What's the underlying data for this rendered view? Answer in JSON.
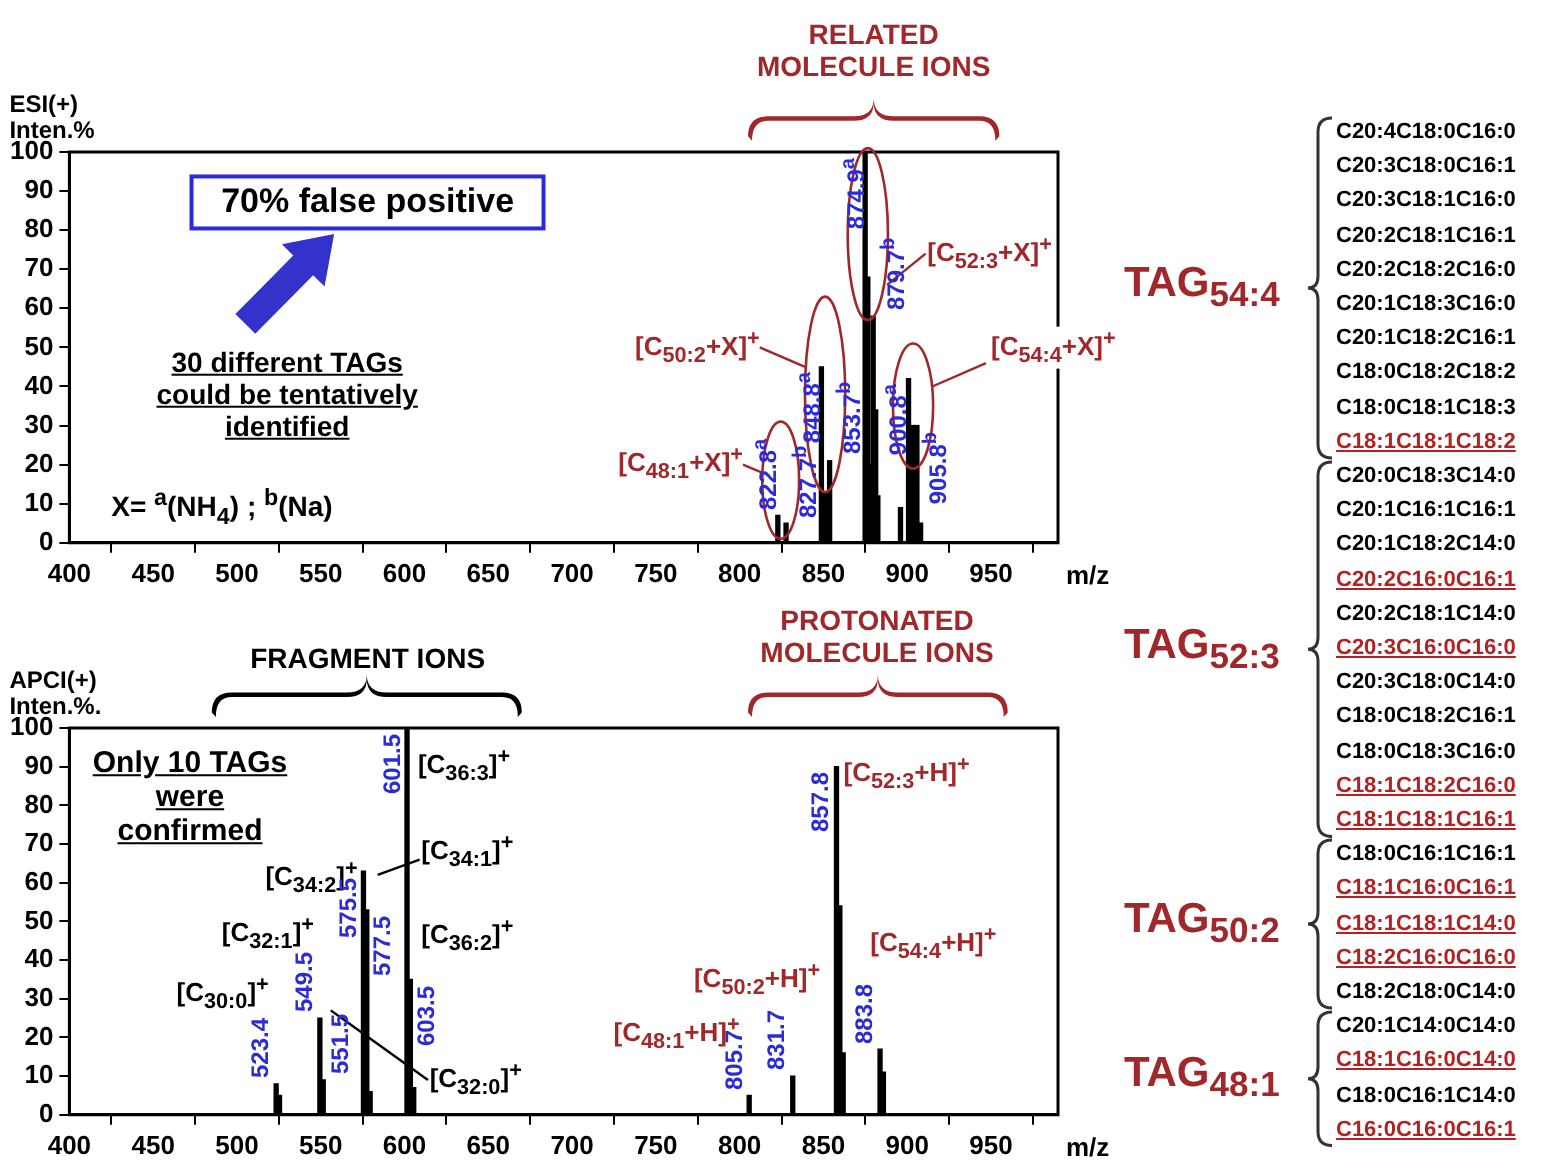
{
  "chart_data": [
    {
      "type": "bar",
      "xlabel": "m/z",
      "ylabel": "ESI(+) Inten.%",
      "color": "#000000",
      "xlim": [
        400,
        990
      ],
      "xticks": [
        400,
        450,
        500,
        550,
        600,
        650,
        700,
        750,
        800,
        850,
        900,
        950
      ],
      "ylim": [
        0,
        100
      ],
      "yticks": [
        0,
        10,
        20,
        30,
        40,
        50,
        60,
        70,
        80,
        90,
        100
      ],
      "x": [
        822.8,
        827.7,
        848.8,
        851.2,
        853.7,
        874.9,
        876.5,
        878.0,
        879.7,
        881.2,
        882.5,
        896.0,
        900.8,
        903.5,
        905.8,
        908.0
      ],
      "values": [
        7,
        5,
        45,
        13,
        21,
        100,
        68,
        20,
        58,
        34,
        12,
        9,
        42,
        30,
        30,
        5
      ],
      "annotations": [
        "RELATED MOLECULE IONS",
        "70% false positive",
        "30 different TAGs could be tentatively identified",
        "X= $^{a}$(NH$_{4}$) ; $^{b}$(Na)",
        "[C$_{50:2}$+X]$^{+}$",
        "[C$_{48:1}$+X]$^{+}$",
        "[C$_{52:3}$+X]$^{+}$",
        "[C$_{54:4}$+X]$^{+}$",
        {
          "text": "822.8$^{a}$",
          "x": 822.8,
          "y": 7
        },
        {
          "text": "827.7$^{b}$",
          "x": 827.7,
          "y": 5
        },
        {
          "text": "848.8$^{a}$",
          "x": 848.8,
          "y": 45
        },
        {
          "text": "853.7$^{b}$",
          "x": 853.7,
          "y": 21
        },
        {
          "text": "874.9$^{a}$",
          "x": 874.9,
          "y": 100
        },
        {
          "text": "879.7$^{b}$",
          "x": 879.7,
          "y": 58
        },
        {
          "text": "900.8$^{a}$",
          "x": 900.8,
          "y": 42
        },
        {
          "text": "905.8$^{b}$",
          "x": 905.8,
          "y": 30
        }
      ]
    },
    {
      "type": "bar",
      "xlabel": "m/z",
      "ylabel": "APCI(+) Inten.%.",
      "color": "#000000",
      "xlim": [
        400,
        990
      ],
      "xticks": [
        400,
        450,
        500,
        550,
        600,
        650,
        700,
        750,
        800,
        850,
        900,
        950
      ],
      "ylim": [
        0,
        100
      ],
      "yticks": [
        0,
        10,
        20,
        30,
        40,
        50,
        60,
        70,
        80,
        90,
        100
      ],
      "x": [
        523.4,
        525.4,
        549.5,
        551.5,
        575.5,
        577.5,
        579.5,
        601.5,
        603.5,
        605.5,
        805.7,
        831.7,
        857.8,
        859.8,
        861.8,
        883.8,
        885.8
      ],
      "values": [
        8,
        5,
        25,
        9,
        63,
        53,
        6,
        100,
        35,
        7,
        5,
        10,
        90,
        54,
        16,
        17,
        11
      ],
      "annotations": [
        "FRAGMENT IONS",
        "PROTONATED MOLECULE IONS",
        "Only 10 TAGs were confirmed",
        "[C$_{36:3}$]$^{+}$",
        "[C$_{34:1}$]$^{+}$",
        "[C$_{34:2}$]$^{+}$",
        "[C$_{32:1}$]$^{+}$",
        "[C$_{36:2}$]$^{+}$",
        "[C$_{30:0}$]$^{+}$",
        "[C$_{32:0}$]$^{+}$",
        "[C$_{52:3}$+H]$^{+}$",
        "[C$_{50:2}$+H]$^{+}$",
        "[C$_{54:4}$+H]$^{+}$",
        "[C$_{48:1}$+H]$^{+}$",
        {
          "text": "523.4",
          "x": 523.4,
          "y": 8
        },
        {
          "text": "549.5",
          "x": 549.5,
          "y": 25
        },
        {
          "text": "551.5",
          "x": 551.5,
          "y": 9
        },
        {
          "text": "575.5",
          "x": 575.5,
          "y": 63
        },
        {
          "text": "577.5",
          "x": 577.5,
          "y": 53
        },
        {
          "text": "601.5",
          "x": 601.5,
          "y": 100
        },
        {
          "text": "603.5",
          "x": 603.5,
          "y": 35
        },
        {
          "text": "805.7",
          "x": 805.7,
          "y": 5
        },
        {
          "text": "831.7",
          "x": 831.7,
          "y": 10
        },
        {
          "text": "857.8",
          "x": 857.8,
          "y": 90
        },
        {
          "text": "883.8",
          "x": 883.8,
          "y": 17
        }
      ]
    },
    {
      "type": "other",
      "title": "TAG$_{54:4}$",
      "categories": [
        "C20:4C18:0C16:0",
        "C20:3C18:0C16:1",
        "C20:3C18:1C16:0",
        "C20:2C18:1C16:1",
        "C20:2C18:2C16:0",
        "C20:1C18:3C16:0",
        "C20:1C18:2C16:1",
        "C18:0C18:2C18:2",
        "C18:0C18:1C18:3",
        "C18:1C18:1C18:2"
      ],
      "colors": [
        "#000000",
        "#000000",
        "#000000",
        "#000000",
        "#000000",
        "#000000",
        "#000000",
        "#000000",
        "#000000",
        "#b22222"
      ]
    },
    {
      "type": "other",
      "title": "TAG$_{52:3}$",
      "categories": [
        "C20:0C18:3C14:0",
        "C20:1C16:1C16:1",
        "C20:1C18:2C14:0",
        "C20:2C16:0C16:1",
        "C20:2C18:1C14:0",
        "C20:3C16:0C16:0",
        "C20:3C18:0C14:0",
        "C18:0C18:2C16:1",
        "C18:0C18:3C16:0",
        "C18:1C18:2C16:0",
        "C18:1C18:1C16:1"
      ],
      "colors": [
        "#000000",
        "#000000",
        "#000000",
        "#b22222",
        "#000000",
        "#b22222",
        "#000000",
        "#000000",
        "#000000",
        "#b22222",
        "#b22222"
      ]
    },
    {
      "type": "other",
      "title": "TAG$_{50:2}$",
      "categories": [
        "C18:0C16:1C16:1",
        "C18:1C16:0C16:1",
        "C18:1C18:1C14:0",
        "C18:2C16:0C16:0",
        "C18:2C18:0C14:0"
      ],
      "colors": [
        "#000000",
        "#b22222",
        "#b22222",
        "#b22222",
        "#000000"
      ]
    },
    {
      "type": "other",
      "title": "TAG$_{48:1}$",
      "categories": [
        "C20:1C14:0C14:0",
        "C18:1C16:0C14:0",
        "C18:0C16:1C14:0",
        "C16:0C16:0C16:1"
      ],
      "colors": [
        "#000000",
        "#b22222",
        "#000000",
        "#b22222"
      ]
    }
  ]
}
